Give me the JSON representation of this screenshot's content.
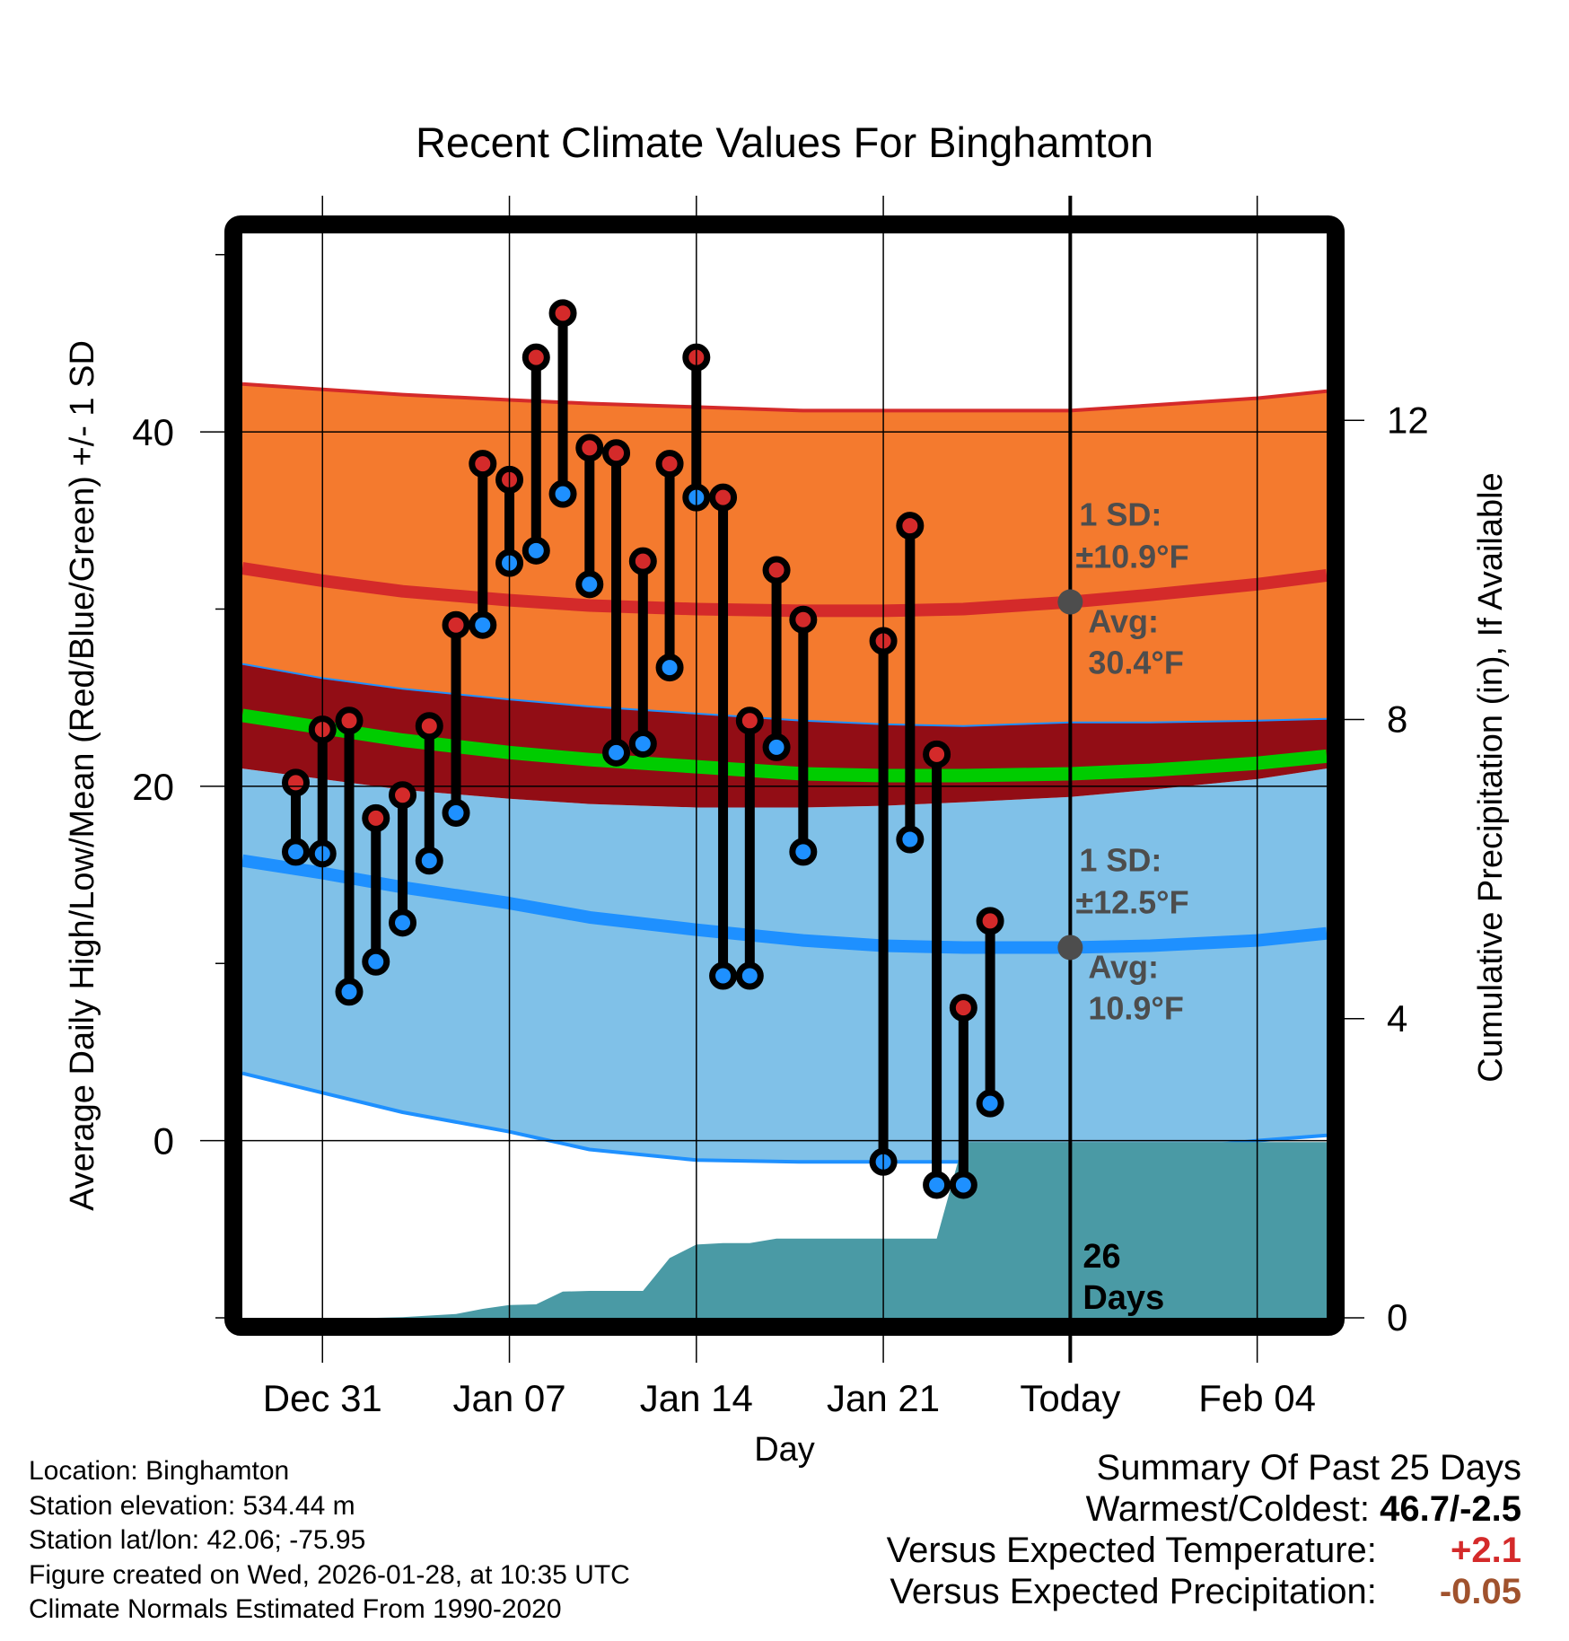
{
  "chart_data": {
    "type": "line",
    "title": "Recent Climate Values For Binghamton",
    "xlabel": "Day",
    "ylabel": "Average Daily High/Low/Mean (Red/Blue/Green) +/- 1 SD",
    "y2label": "Cumulative Precipitation (in), If Available",
    "ylim": [
      -10,
      51.2
    ],
    "y2lim": [
      0,
      14.5
    ],
    "yticks": [
      0,
      20,
      40
    ],
    "yminor_ticks": [
      -10,
      10,
      30,
      50
    ],
    "y2ticks": [
      0,
      4,
      8,
      12
    ],
    "xrange": [
      "Dec 27",
      "Feb 06"
    ],
    "x_start_day_offset": -4,
    "xtick_labels": [
      {
        "label": "Dec 31",
        "day": 0
      },
      {
        "label": "Jan 07",
        "day": 7
      },
      {
        "label": "Jan 14",
        "day": 14
      },
      {
        "label": "Jan 21",
        "day": 21
      },
      {
        "label": "Today",
        "day": 28
      },
      {
        "label": "Feb 04",
        "day": 35
      }
    ],
    "grid": true,
    "today_day": 28,
    "day_span": [
      -3,
      37.6
    ],
    "normals": {
      "days": [
        -3,
        0,
        3,
        7,
        10,
        14,
        18,
        21,
        24,
        28,
        31,
        35,
        37.6
      ],
      "high_avg": [
        32.3,
        31.6,
        31.0,
        30.5,
        30.2,
        30.0,
        29.9,
        29.9,
        30.0,
        30.4,
        30.8,
        31.4,
        31.9
      ],
      "high_sd_upper": [
        42.7,
        42.4,
        42.1,
        41.8,
        41.6,
        41.4,
        41.2,
        41.2,
        41.2,
        41.2,
        41.5,
        41.9,
        42.3
      ],
      "high_sd_lower": [
        26.9,
        26.1,
        25.5,
        24.9,
        24.5,
        24.1,
        23.7,
        23.5,
        23.4,
        23.6,
        23.6,
        23.7,
        23.8
      ],
      "mean_avg": [
        24.0,
        23.3,
        22.6,
        21.9,
        21.5,
        21.1,
        20.7,
        20.6,
        20.6,
        20.7,
        20.9,
        21.3,
        21.7
      ],
      "low_avg": [
        15.8,
        15.1,
        14.3,
        13.4,
        12.6,
        11.9,
        11.3,
        11.0,
        10.9,
        10.9,
        11.0,
        11.3,
        11.7
      ],
      "low_sd_upper": [
        21.0,
        20.4,
        19.8,
        19.3,
        19.0,
        18.8,
        18.8,
        18.9,
        19.1,
        19.4,
        19.8,
        20.4,
        21.0
      ],
      "low_sd_lower": [
        3.8,
        2.7,
        1.6,
        0.5,
        -0.5,
        -1.1,
        -1.2,
        -1.2,
        -1.2,
        -0.9,
        -0.6,
        0.0,
        0.3
      ]
    },
    "series": [
      {
        "name": "Daily High",
        "color": "#d42a2a",
        "days": [
          -1,
          0,
          1,
          2,
          3,
          4,
          5,
          6,
          7,
          8,
          9,
          10,
          11,
          12,
          13,
          14,
          15,
          16,
          17,
          18,
          21,
          22,
          23,
          24,
          25
        ],
        "values": [
          20.2,
          23.2,
          23.7,
          18.2,
          19.5,
          23.4,
          29.1,
          38.2,
          37.3,
          44.2,
          46.7,
          39.1,
          38.8,
          32.7,
          38.2,
          44.2,
          36.3,
          23.7,
          32.2,
          29.4,
          28.2,
          34.7,
          21.8,
          7.5,
          12.4
        ]
      },
      {
        "name": "Daily Low",
        "color": "#1e90ff",
        "days": [
          -1,
          0,
          1,
          2,
          3,
          4,
          5,
          6,
          7,
          8,
          9,
          10,
          11,
          12,
          13,
          14,
          15,
          16,
          17,
          18,
          21,
          22,
          23,
          24,
          25
        ],
        "values": [
          16.3,
          16.2,
          8.4,
          10.1,
          12.3,
          15.8,
          18.5,
          29.1,
          32.6,
          33.3,
          36.5,
          31.4,
          21.9,
          22.4,
          26.7,
          36.3,
          9.3,
          9.3,
          22.2,
          16.3,
          -1.2,
          17.0,
          -2.5,
          -2.5,
          2.1
        ]
      }
    ],
    "precipitation": {
      "name": "Cumulative Precipitation",
      "color": "#4a9aa5",
      "days": [
        -3,
        0,
        1,
        2,
        3,
        4,
        5,
        6,
        7,
        8,
        9,
        10,
        11,
        12,
        13,
        14,
        15,
        16,
        17,
        18,
        19,
        20,
        21,
        22,
        23,
        24,
        25,
        37.6
      ],
      "values": [
        0,
        0,
        0,
        0,
        0.01,
        0.03,
        0.05,
        0.12,
        0.17,
        0.18,
        0.35,
        0.36,
        0.36,
        0.36,
        0.8,
        0.98,
        1.0,
        1.0,
        1.06,
        1.06,
        1.06,
        1.06,
        1.06,
        1.06,
        1.06,
        2.35,
        2.35,
        2.35
      ]
    },
    "annotations": {
      "high": {
        "sd_label": "1 SD:",
        "sd_value": "±10.9°F",
        "avg_label": "Avg:",
        "avg_value": "30.4°F",
        "avg": 30.4
      },
      "low": {
        "sd_label": "1 SD:",
        "sd_value": "±12.5°F",
        "avg_label": "Avg:",
        "avg_value": "10.9°F",
        "avg": 10.9
      },
      "days_count": "26",
      "days_label": "Days"
    },
    "colors": {
      "high_band": "#f47a2e",
      "high_band_edge": "#d42a2a",
      "mean_band": "#920d15",
      "mean_line": "#00cc00",
      "low_band": "#80c1e8",
      "low_band_edge": "#1e90ff",
      "today_dot": "#4d4d4d"
    }
  },
  "footer": {
    "location": "Location: Binghamton",
    "elevation": "Station elevation: 534.44 m",
    "latlon": "Station lat/lon: 42.06; -75.95",
    "created": "Figure created on Wed, 2026-01-28, at 10:35 UTC",
    "normals": "Climate Normals Estimated From 1990-2020"
  },
  "summary": {
    "title": "Summary Of Past 25 Days",
    "warmest_label": "Warmest/Coldest:",
    "warmest_value": "46.7/-2.5",
    "temp_label": "Versus Expected Temperature:",
    "temp_value": "+2.1",
    "precip_label": "Versus Expected Precipitation:",
    "precip_value": "-0.05"
  }
}
